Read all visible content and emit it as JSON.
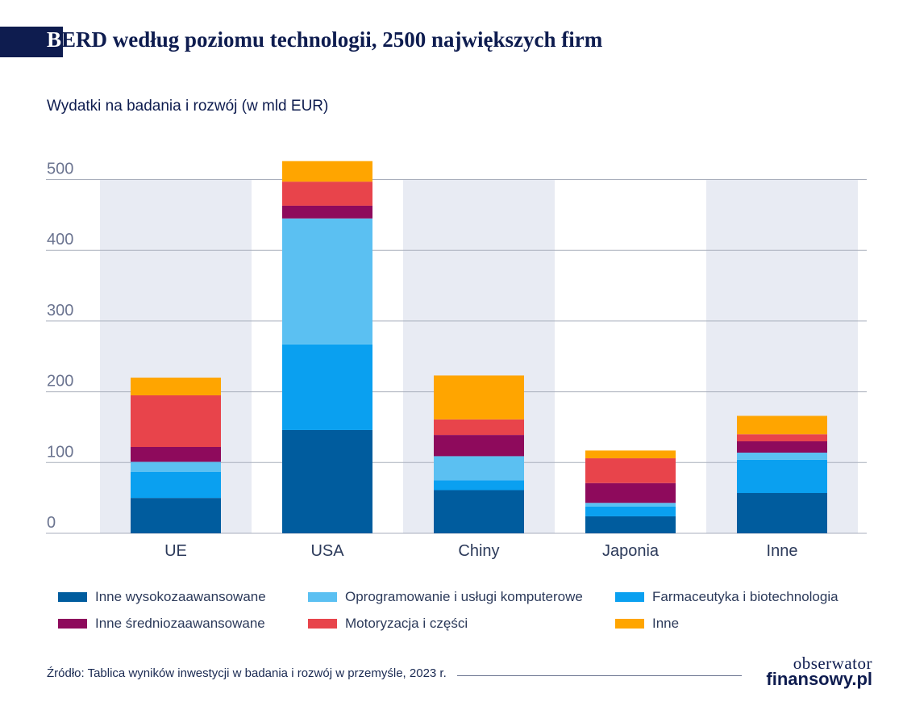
{
  "header": {
    "title_first_letter": "B",
    "title_rest": "ERD według poziomu technologii, 2500 największych firm",
    "subtitle": "Wydatki na badania i rozwój (w mld EUR)"
  },
  "chart_data": {
    "type": "bar",
    "stacked": true,
    "categories": [
      "UE",
      "USA",
      "Chiny",
      "Japonia",
      "Inne"
    ],
    "series": [
      {
        "name": "Inne wysokozaawansowane",
        "color": "#005c9e",
        "values": [
          50,
          146,
          61,
          24,
          57
        ]
      },
      {
        "name": "Farmaceutyka i biotechnologia",
        "color": "#0aa0f0",
        "values": [
          37,
          121,
          14,
          14,
          47
        ]
      },
      {
        "name": "Oprogramowanie i usługi komputerowe",
        "color": "#5bc0f2",
        "values": [
          14,
          178,
          34,
          5,
          10
        ]
      },
      {
        "name": "Inne średniozaawansowane",
        "color": "#8e0a5c",
        "values": [
          21,
          18,
          30,
          28,
          16
        ]
      },
      {
        "name": "Motoryzacja i części",
        "color": "#e8444b",
        "values": [
          73,
          34,
          22,
          35,
          10
        ]
      },
      {
        "name": "Inne",
        "color": "#ffa500",
        "values": [
          25,
          29,
          62,
          11,
          26
        ]
      }
    ],
    "y_ticks": [
      0,
      100,
      200,
      300,
      400,
      500
    ],
    "ylim": [
      0,
      525
    ],
    "grid": true,
    "alternating_background": true
  },
  "legend": {
    "items": [
      {
        "label": "Inne wysokozaawansowane",
        "color": "#005c9e"
      },
      {
        "label": "Oprogramowanie i usługi komputerowe",
        "color": "#5bc0f2"
      },
      {
        "label": "Farmaceutyka i biotechnologia",
        "color": "#0aa0f0"
      },
      {
        "label": "Inne średniozaawansowane",
        "color": "#8e0a5c"
      },
      {
        "label": "Motoryzacja i części",
        "color": "#e8444b"
      },
      {
        "label": "Inne",
        "color": "#ffa500"
      }
    ]
  },
  "footer": {
    "source": "Źródło: Tablica wyników inwestycji w badania i rozwój w przemyśle, 2023 r.",
    "logo_line1": "obserwator",
    "logo_line2": "finansowy.pl"
  }
}
